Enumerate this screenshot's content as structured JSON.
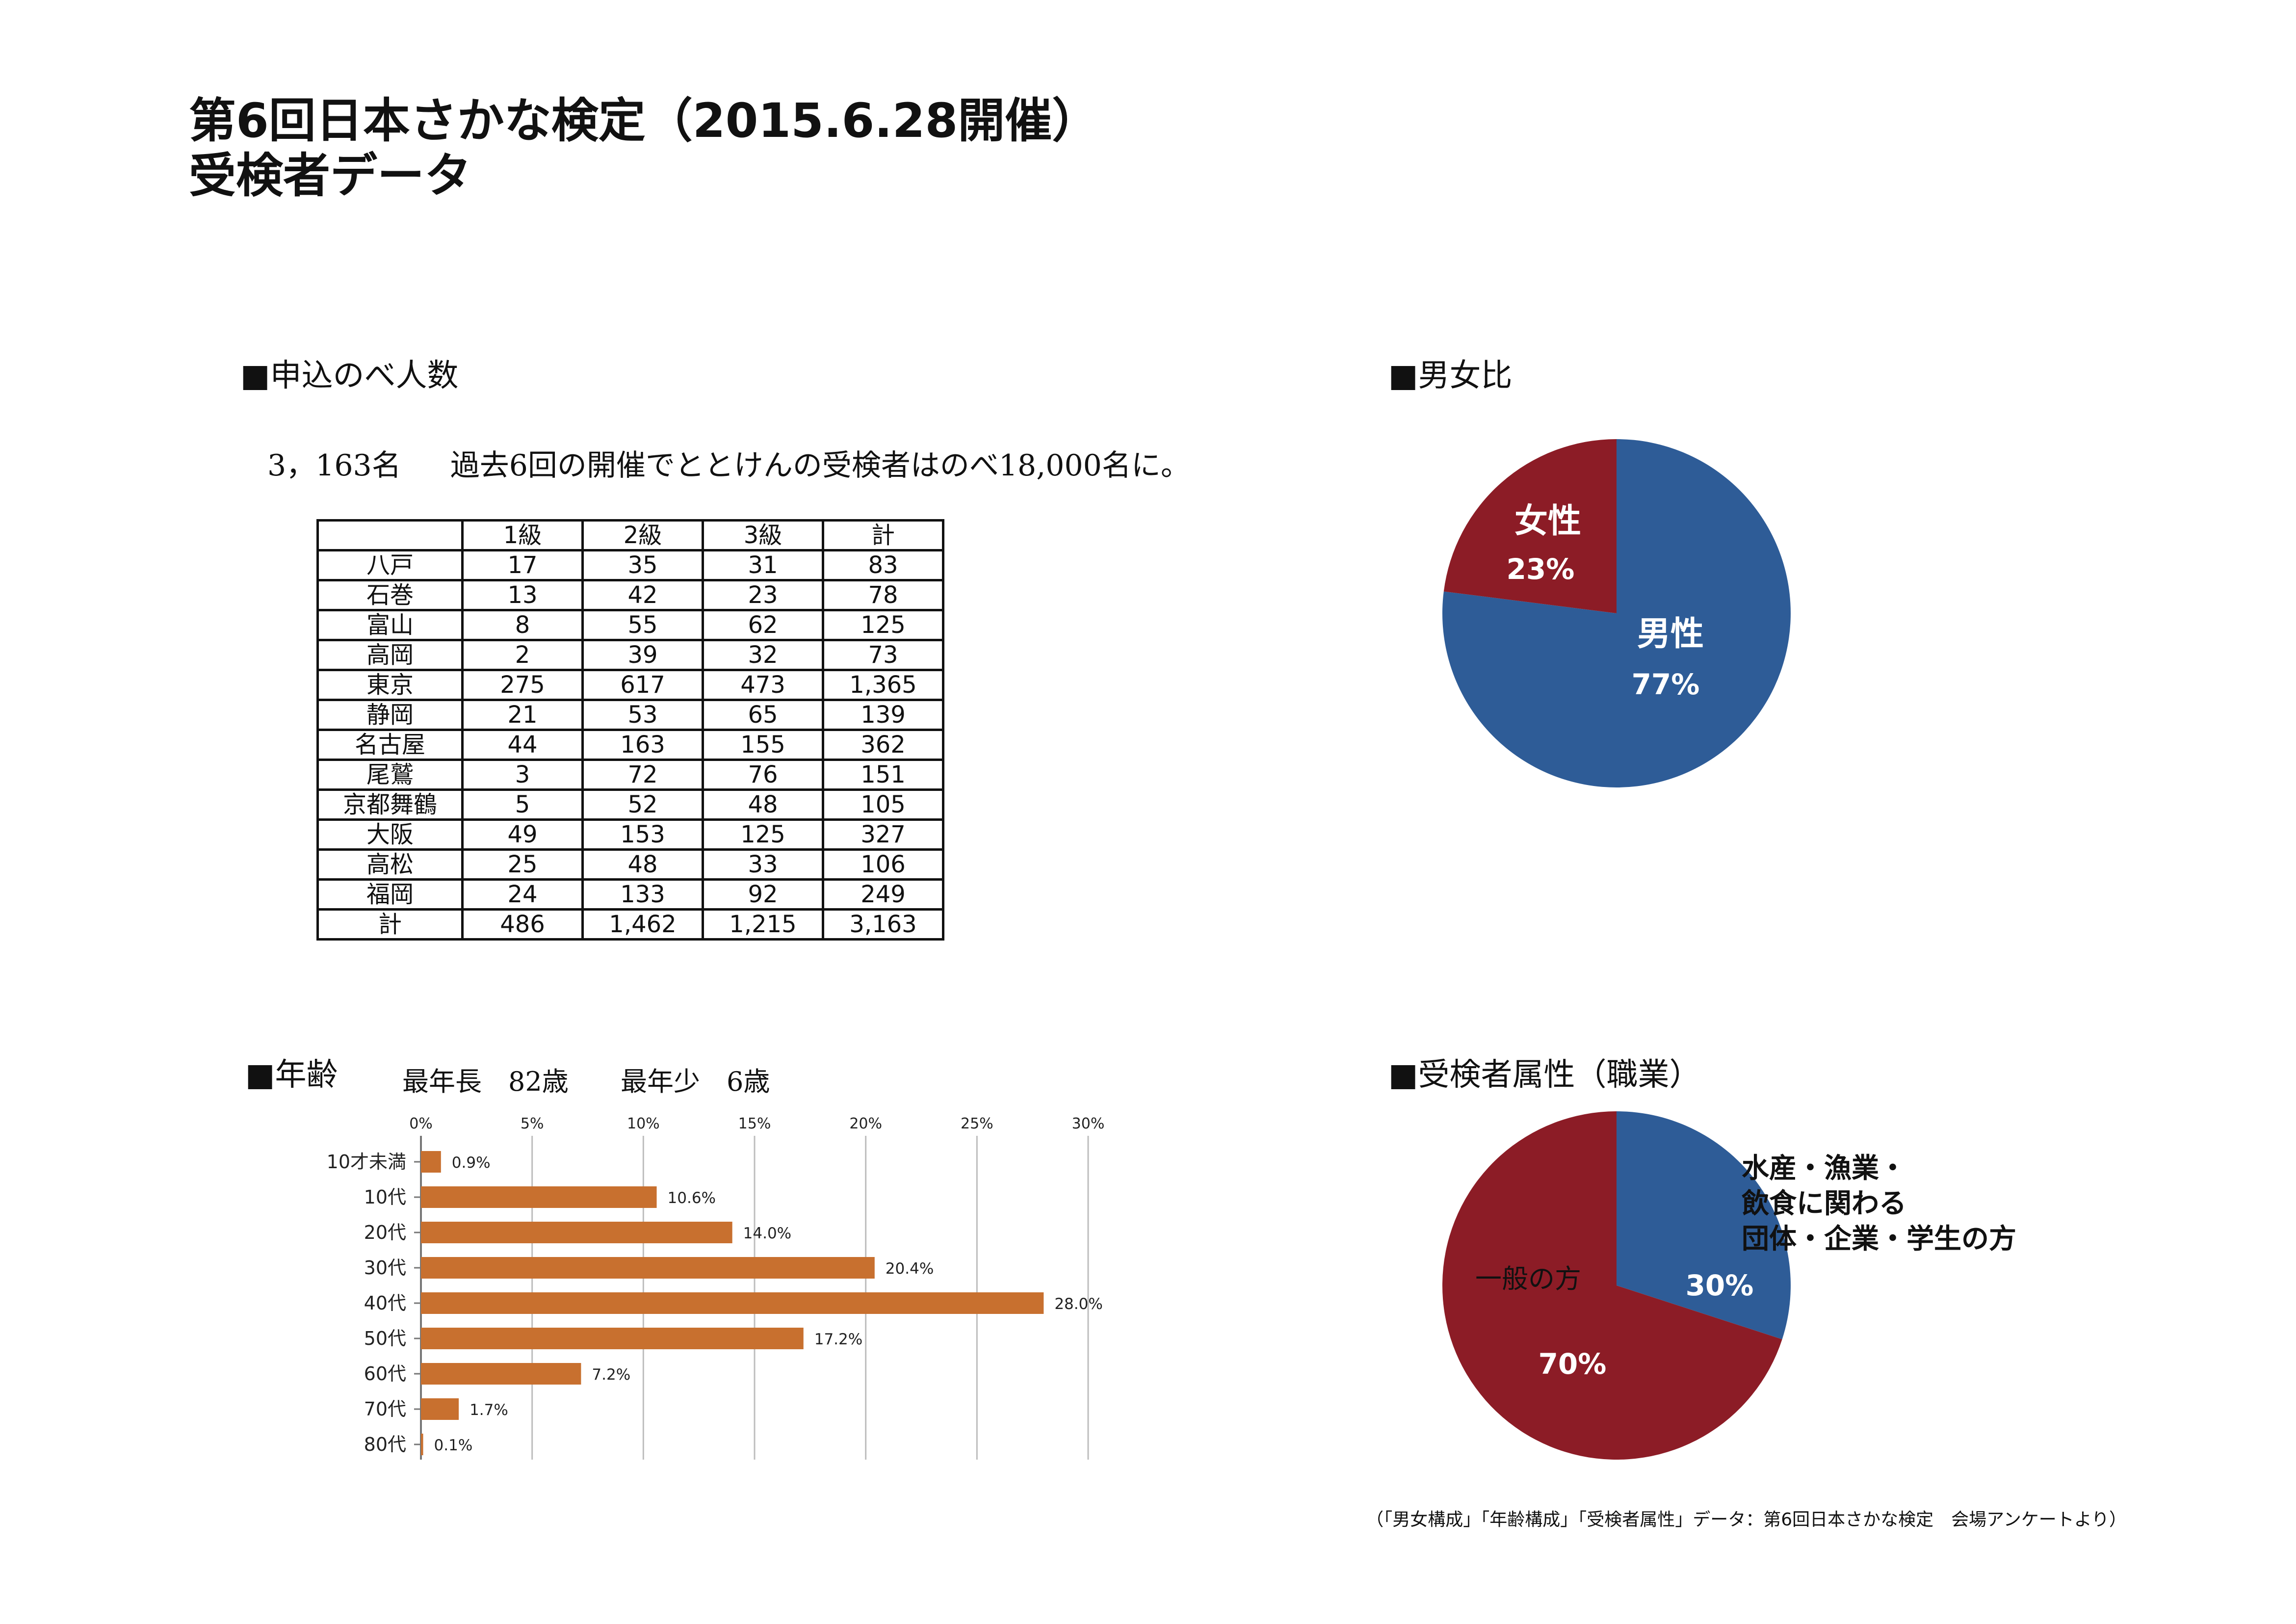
{
  "title": {
    "line1": "第6回日本さかな検定（2015.6.28開催）",
    "line2": "受検者データ"
  },
  "count_section": {
    "heading": "■申込のべ人数",
    "total": "3，163名",
    "note": "過去6回の開催でととけんの受検者はのべ18,000名に。"
  },
  "gender_section": {
    "heading": "■男女比"
  },
  "age_section": {
    "heading": "■年齢",
    "oldest": "最年長　82歳",
    "youngest": "最年少　6歳"
  },
  "job_section": {
    "heading": "■受検者属性（職業）"
  },
  "footnote": "（「男女構成」「年齢構成」「受検者属性」データ：第6回日本さかな検定　会場アンケートより）",
  "colors": {
    "blue": "#2E5C97",
    "red": "#8C1C26",
    "bar": "#C8702F"
  },
  "chart_data": [
    {
      "type": "table",
      "columns": [
        "",
        "1級",
        "2級",
        "3級",
        "計"
      ],
      "rows": [
        [
          "八戸",
          "17",
          "35",
          "31",
          "83"
        ],
        [
          "石巻",
          "13",
          "42",
          "23",
          "78"
        ],
        [
          "富山",
          "8",
          "55",
          "62",
          "125"
        ],
        [
          "高岡",
          "2",
          "39",
          "32",
          "73"
        ],
        [
          "東京",
          "275",
          "617",
          "473",
          "1,365"
        ],
        [
          "静岡",
          "21",
          "53",
          "65",
          "139"
        ],
        [
          "名古屋",
          "44",
          "163",
          "155",
          "362"
        ],
        [
          "尾鷲",
          "3",
          "72",
          "76",
          "151"
        ],
        [
          "京都舞鶴",
          "5",
          "52",
          "48",
          "105"
        ],
        [
          "大阪",
          "49",
          "153",
          "125",
          "327"
        ],
        [
          "高松",
          "25",
          "48",
          "33",
          "106"
        ],
        [
          "福岡",
          "24",
          "133",
          "92",
          "249"
        ],
        [
          "計",
          "486",
          "1,462",
          "1,215",
          "3,163"
        ]
      ]
    },
    {
      "type": "pie",
      "slices": [
        {
          "label": "男性",
          "value": 77,
          "value_label": "77%",
          "color": "#2E5C97"
        },
        {
          "label": "女性",
          "value": 23,
          "value_label": "23%",
          "color": "#8C1C26"
        }
      ]
    },
    {
      "type": "bar",
      "orientation": "horizontal",
      "categories": [
        "10才未満",
        "10代",
        "20代",
        "30代",
        "40代",
        "50代",
        "60代",
        "70代",
        "80代"
      ],
      "values": [
        0.9,
        10.6,
        14.0,
        20.4,
        28.0,
        17.2,
        7.2,
        1.7,
        0.1
      ],
      "value_labels": [
        "0.9%",
        "10.6%",
        "14.0%",
        "20.4%",
        "28.0%",
        "17.2%",
        "7.2%",
        "1.7%",
        "0.1%"
      ],
      "xticks": [
        "0%",
        "5%",
        "10%",
        "15%",
        "20%",
        "25%",
        "30%"
      ],
      "xlim": [
        0,
        30
      ],
      "grid": true
    },
    {
      "type": "pie",
      "slices": [
        {
          "label": "水産・漁業・\n飲食に関わる\n団体・企業・学生の方",
          "value": 30,
          "value_label": "30%",
          "color": "#2E5C97"
        },
        {
          "label": "一般の方",
          "value": 70,
          "value_label": "70%",
          "color": "#8C1C26"
        }
      ]
    }
  ]
}
